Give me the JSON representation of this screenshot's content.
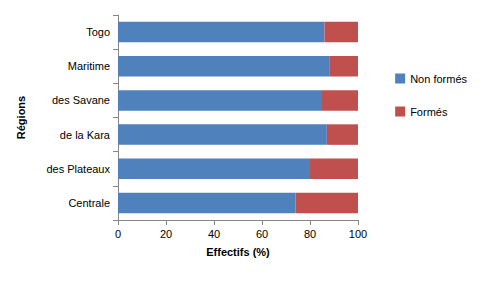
{
  "chart_data": {
    "type": "bar",
    "orientation": "horizontal",
    "stacked": true,
    "x_label": "Effectifs (%)",
    "y_label": "Régions",
    "categories": [
      "Centrale",
      "des Plateaux",
      "de la Kara",
      "des Savane",
      "Maritime",
      "Togo"
    ],
    "series": [
      {
        "name": "Non formés",
        "color": "#4f81bd",
        "values": [
          74,
          80,
          87,
          85,
          88,
          86
        ]
      },
      {
        "name": "Formés",
        "color": "#c0504d",
        "values": [
          26,
          20,
          13,
          15,
          12,
          14
        ]
      }
    ],
    "xlim": [
      0,
      100
    ],
    "xticks": [
      0,
      20,
      40,
      60,
      80,
      100
    ],
    "grid": false,
    "legend": "right"
  }
}
